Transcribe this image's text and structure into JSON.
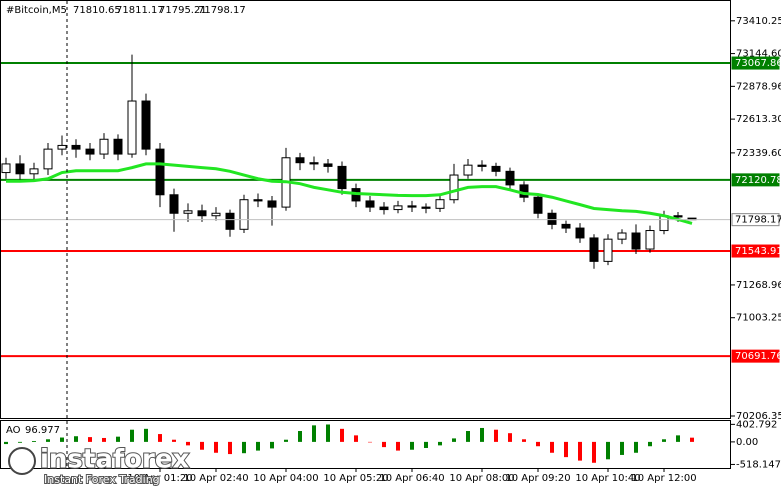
{
  "chart_data": {
    "type": "candlestick",
    "symbol": "#Bitcoin,M5",
    "open": [
      72180,
      72250,
      72170,
      72210,
      72370,
      72400,
      72370,
      72330,
      72450,
      72330,
      72760,
      72370,
      72000,
      71850,
      71870,
      71830,
      71850,
      71720,
      71960,
      71950,
      71900,
      72300,
      72260,
      72250,
      72230,
      72050,
      71950,
      71900,
      71880,
      71910,
      71900,
      71890,
      71960,
      72160,
      72240,
      72230,
      72190,
      72080,
      71980,
      71850,
      71760,
      71730,
      71650,
      71460,
      71640,
      71690,
      71560,
      71710,
      71830,
      71810.65
    ],
    "high": [
      72300,
      72320,
      72260,
      72420,
      72480,
      72450,
      72420,
      72500,
      72490,
      73136,
      72820,
      72420,
      72050,
      71930,
      71920,
      71900,
      71880,
      72000,
      72010,
      71990,
      72380,
      72340,
      72310,
      72290,
      72270,
      72090,
      71990,
      71940,
      71950,
      71950,
      71930,
      72000,
      72250,
      72290,
      72280,
      72260,
      72220,
      72110,
      72010,
      71880,
      71790,
      71770,
      71680,
      71680,
      71720,
      71760,
      71750,
      71870,
      71860,
      71811.17
    ],
    "low": [
      72130,
      72100,
      72120,
      72160,
      72320,
      72300,
      72280,
      72290,
      72280,
      72300,
      72320,
      71900,
      71700,
      71780,
      71780,
      71790,
      71660,
      71690,
      71900,
      71750,
      71870,
      72200,
      72200,
      72180,
      72000,
      71900,
      71860,
      71840,
      71850,
      71860,
      71850,
      71860,
      71930,
      72130,
      72190,
      72150,
      72040,
      71940,
      71810,
      71720,
      71690,
      71610,
      71400,
      71430,
      71600,
      71520,
      71530,
      71680,
      71780,
      71795.21
    ],
    "close": [
      72250,
      72170,
      72210,
      72370,
      72400,
      72370,
      72330,
      72450,
      72330,
      72760,
      72370,
      72000,
      71850,
      71870,
      71830,
      71850,
      71720,
      71960,
      71950,
      71900,
      72300,
      72260,
      72250,
      72230,
      72050,
      71950,
      71900,
      71880,
      71910,
      71900,
      71890,
      71960,
      72160,
      72240,
      72230,
      72190,
      72080,
      71980,
      71850,
      71760,
      71730,
      71650,
      71460,
      71640,
      71690,
      71560,
      71710,
      71830,
      71820,
      71798.17
    ],
    "moving_average": {
      "color": "#22e622",
      "values": [
        72110,
        72110,
        72115,
        72130,
        72180,
        72195,
        72195,
        72195,
        72195,
        72220,
        72250,
        72250,
        72240,
        72230,
        72220,
        72211,
        72190,
        72160,
        72130,
        72110,
        72106,
        72090,
        72060,
        72040,
        72020,
        72010,
        72005,
        72000,
        71995,
        71993,
        71993,
        72000,
        72030,
        72060,
        72066,
        72066,
        72040,
        72010,
        72002,
        71980,
        71950,
        71920,
        71889,
        71880,
        71870,
        71865,
        71850,
        71830,
        71800,
        71768
      ]
    },
    "levels": [
      {
        "value": 73067.86,
        "color": "#008000"
      },
      {
        "value": 72120.78,
        "color": "#008000"
      },
      {
        "value": 71543.91,
        "color": "#ff0000"
      },
      {
        "value": 70691.76,
        "color": "#ff0000"
      }
    ],
    "ylim": [
      70174,
      73579
    ],
    "yticks": [
      {
        "value": 73410.25,
        "label": "73410.25"
      },
      {
        "value": 73144.6,
        "label": "73144.60"
      },
      72878.96,
      {
        "value": 72613.3,
        "label": "72613.30"
      },
      {
        "value": 72339.6,
        "label": "72339.60"
      },
      71268.96,
      71003.25,
      70206.35
    ],
    "xticks": [
      {
        "candle": 11,
        "label": "10 Apr 01:20"
      },
      {
        "candle": 15,
        "label": "10 Apr 02:40"
      },
      {
        "candle": 20,
        "label": "10 Apr 04:00"
      },
      {
        "candle": 25,
        "label": "10 Apr 05:20"
      },
      {
        "candle": 29,
        "label": "10 Apr 06:40"
      },
      {
        "candle": 34,
        "label": "10 Apr 08:00"
      },
      {
        "candle": 38,
        "label": "10 Apr 09:20"
      },
      {
        "candle": 43,
        "label": "10 Apr 10:40"
      },
      {
        "candle": 47,
        "label": "10 Apr 12:00"
      }
    ],
    "indicator": {
      "name": "AO",
      "current": 96.977,
      "up_color": "#008000",
      "down_color": "#ff0000",
      "values": [
        -50,
        -20,
        20,
        60,
        100,
        130,
        110,
        90,
        120,
        280,
        300,
        180,
        50,
        -80,
        -180,
        -250,
        -280,
        -260,
        -200,
        -150,
        50,
        250,
        380,
        400,
        300,
        150,
        0,
        -120,
        -200,
        -180,
        -140,
        -80,
        80,
        250,
        320,
        280,
        200,
        60,
        -100,
        -250,
        -350,
        -430,
        -480,
        -400,
        -300,
        -250,
        -100,
        60,
        150,
        96.977
      ],
      "ylim": [
        -600,
        480
      ],
      "yticks": [
        402.792,
        {
          "value": 0,
          "label": "0.00"
        },
        -518.147
      ]
    },
    "logo": {
      "name": "instaforex",
      "tagline": "Instant Forex Trading"
    }
  }
}
